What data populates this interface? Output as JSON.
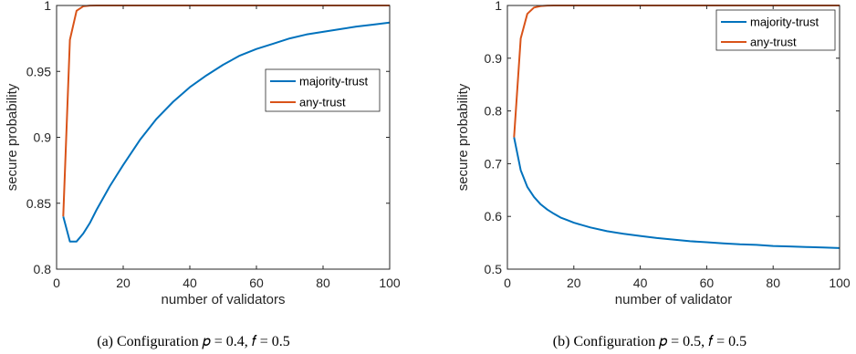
{
  "chart_data": [
    {
      "type": "line",
      "caption": "(a)  Configuration 𝑝 = 0.4, 𝑓 = 0.5",
      "xlabel": "number of validators",
      "ylabel": "secure probability",
      "xlim": [
        0,
        100
      ],
      "ylim": [
        0.8,
        1
      ],
      "xticks": [
        "0",
        "20",
        "40",
        "60",
        "80",
        "100"
      ],
      "yticks": [
        "0.8",
        "0.85",
        "0.9",
        "0.95",
        "1"
      ],
      "xtick_values": [
        0,
        20,
        40,
        60,
        80,
        100
      ],
      "ytick_values": [
        0.8,
        0.85,
        0.9,
        0.95,
        1
      ],
      "legend_position": "right",
      "series": [
        {
          "name": "majority-trust",
          "color": "#0072BD",
          "x": [
            2,
            4,
            6,
            8,
            10,
            12,
            14,
            16,
            18,
            20,
            25,
            30,
            35,
            40,
            45,
            50,
            55,
            60,
            65,
            70,
            75,
            80,
            85,
            90,
            95,
            100
          ],
          "y": [
            0.84,
            0.821,
            0.821,
            0.827,
            0.835,
            0.845,
            0.854,
            0.863,
            0.871,
            0.879,
            0.898,
            0.914,
            0.927,
            0.938,
            0.947,
            0.955,
            0.962,
            0.967,
            0.971,
            0.975,
            0.978,
            0.98,
            0.982,
            0.984,
            0.9855,
            0.987
          ]
        },
        {
          "name": "any-trust",
          "color": "#D95319",
          "x": [
            2,
            4,
            6,
            8,
            10,
            12,
            16,
            20,
            30,
            40,
            50,
            60,
            70,
            80,
            90,
            100
          ],
          "y": [
            0.84,
            0.974,
            0.996,
            0.9994,
            0.9999,
            1,
            1,
            1,
            1,
            1,
            1,
            1,
            1,
            1,
            1,
            1
          ]
        }
      ]
    },
    {
      "type": "line",
      "caption": "(b)  Configuration 𝑝 = 0.5, 𝑓 = 0.5",
      "xlabel": "number of validator",
      "ylabel": "secure probability",
      "xlim": [
        0,
        100
      ],
      "ylim": [
        0.5,
        1
      ],
      "xticks": [
        "0",
        "20",
        "40",
        "60",
        "80",
        "100"
      ],
      "yticks": [
        "0.5",
        "0.6",
        "0.7",
        "0.8",
        "0.9",
        "1"
      ],
      "xtick_values": [
        0,
        20,
        40,
        60,
        80,
        100
      ],
      "ytick_values": [
        0.5,
        0.6,
        0.7,
        0.8,
        0.9,
        1
      ],
      "legend_position": "top-right",
      "series": [
        {
          "name": "majority-trust",
          "color": "#0072BD",
          "x": [
            2,
            4,
            6,
            8,
            10,
            12,
            14,
            16,
            18,
            20,
            25,
            30,
            35,
            40,
            45,
            50,
            55,
            60,
            65,
            70,
            75,
            80,
            85,
            90,
            95,
            100
          ],
          "y": [
            0.75,
            0.6875,
            0.656,
            0.637,
            0.623,
            0.613,
            0.605,
            0.598,
            0.593,
            0.588,
            0.579,
            0.572,
            0.567,
            0.563,
            0.559,
            0.556,
            0.553,
            0.551,
            0.549,
            0.547,
            0.546,
            0.544,
            0.543,
            0.542,
            0.541,
            0.54
          ]
        },
        {
          "name": "any-trust",
          "color": "#D95319",
          "x": [
            2,
            4,
            6,
            8,
            10,
            12,
            14,
            16,
            20,
            30,
            40,
            50,
            60,
            70,
            80,
            90,
            100
          ],
          "y": [
            0.75,
            0.9375,
            0.984,
            0.996,
            0.999,
            0.9998,
            1,
            1,
            1,
            1,
            1,
            1,
            1,
            1,
            1,
            1,
            1
          ]
        }
      ]
    }
  ]
}
